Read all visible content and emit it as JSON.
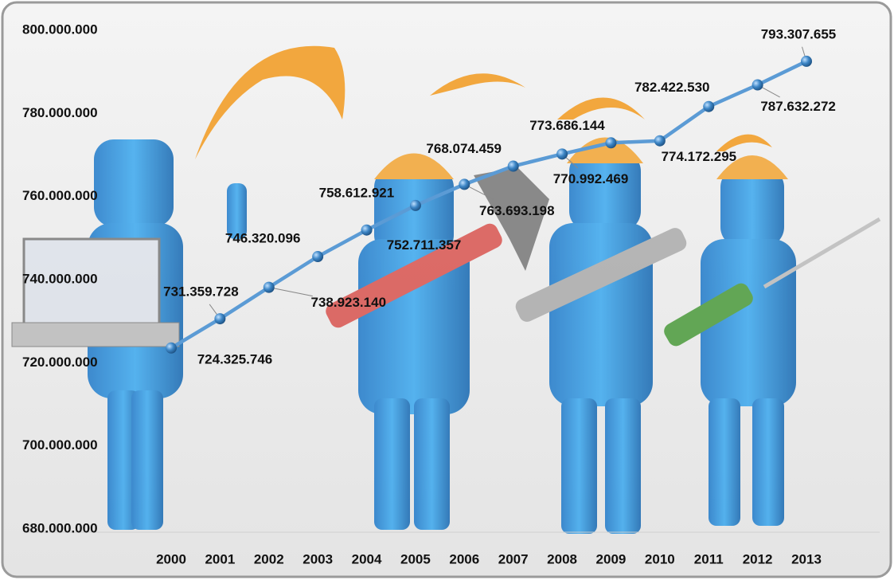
{
  "chart_data": {
    "type": "line",
    "categories": [
      "2000",
      "2001",
      "2002",
      "2003",
      "2004",
      "2005",
      "2006",
      "2007",
      "2008",
      "2009",
      "2010",
      "2011",
      "2012",
      "2013"
    ],
    "series": [
      {
        "color": "#5b9bd5",
        "values": [
          724325746,
          731359728,
          738923140,
          746320096,
          752711357,
          758612921,
          763693198,
          768074459,
          770992469,
          773686144,
          774172295,
          782422530,
          787632272,
          793307655
        ],
        "value_labels": [
          "724.325.746",
          "731.359.728",
          "738.923.140",
          "746.320.096",
          "752.711.357",
          "758.612.921",
          "763.693.198",
          "768.074.459",
          "770.992.469",
          "773.686.144",
          "774.172.295",
          "782.422.530",
          "787.632.272",
          "793.307.655"
        ]
      }
    ],
    "ylim": [
      680000000,
      800000000
    ],
    "yticks": [
      {
        "value": 680000000,
        "label": "680.000.000"
      },
      {
        "value": 700000000,
        "label": "700.000.000"
      },
      {
        "value": 720000000,
        "label": "720.000.000"
      },
      {
        "value": 740000000,
        "label": "740.000.000"
      },
      {
        "value": 760000000,
        "label": "760.000.000"
      },
      {
        "value": 780000000,
        "label": "780.000.000"
      },
      {
        "value": 800000000,
        "label": "800.000.000"
      }
    ]
  }
}
